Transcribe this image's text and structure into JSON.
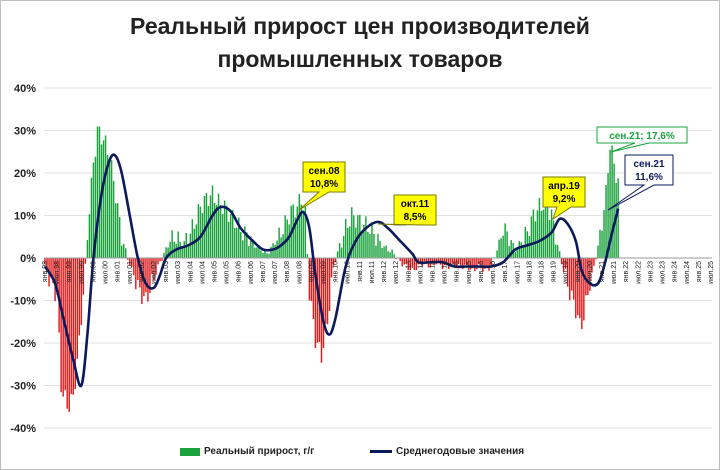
{
  "title_lines": [
    "Реальный прирост цен производителей",
    "промышленных товаров"
  ],
  "colors": {
    "positive": "#1aa33c",
    "negative": "#e01b1b",
    "line": "#0b1a5c",
    "callout_yellow": "#ffff00",
    "callout_green_text": "#1aa33c",
    "callout_blue_text": "#0b1a5c"
  },
  "legend": {
    "bars_label": "Реальный прирост, г/г",
    "line_label": "Среднегодовые значения"
  },
  "chart_data": {
    "type": "bar",
    "x_start": "1998-01",
    "x_end": "2025-07",
    "ylim": [
      -40,
      40
    ],
    "yticks": [
      "40%",
      "30%",
      "20%",
      "10%",
      "0%",
      "-10%",
      "-20%",
      "-30%",
      "-40%"
    ],
    "xtick_labels": [
      "янв.98",
      "июл.98",
      "янв.99",
      "июл.99",
      "янв.00",
      "июл.00",
      "янв.01",
      "июл.01",
      "янв.02",
      "июл.02",
      "янв.03",
      "июл.03",
      "янв.04",
      "июл.04",
      "янв.05",
      "июл.05",
      "янв.06",
      "июл.06",
      "янв.07",
      "июл.07",
      "янв.08",
      "июл.08",
      "янв.09",
      "июл.09",
      "янв.10",
      "июл.10",
      "янв.11",
      "июл.11",
      "янв.12",
      "июл.12",
      "янв.13",
      "июл.13",
      "янв.14",
      "июл.14",
      "янв.15",
      "июл.15",
      "янв.16",
      "июл.16",
      "янв.17",
      "июл.17",
      "янв.18",
      "июл.18",
      "янв.19",
      "июл.19",
      "янв.20",
      "июл.20",
      "янв.21",
      "июл.21",
      "янв.22",
      "июл.22",
      "янв.23",
      "июл.23",
      "янв.24",
      "июл.24",
      "янв.25",
      "июл.25"
    ],
    "series": [
      {
        "name": "Реальный прирост, г/г",
        "kind": "bar",
        "anchors": [
          [
            "1998-01",
            -2
          ],
          [
            "1998-04",
            -6
          ],
          [
            "1998-07",
            -9
          ],
          [
            "1998-09",
            -30
          ],
          [
            "1998-12",
            -35
          ],
          [
            "1999-03",
            -33
          ],
          [
            "1999-06",
            -20
          ],
          [
            "1999-09",
            -2
          ],
          [
            "1999-11",
            12
          ],
          [
            "2000-01",
            22
          ],
          [
            "2000-03",
            30
          ],
          [
            "2000-06",
            28
          ],
          [
            "2000-09",
            24
          ],
          [
            "2000-12",
            15
          ],
          [
            "2001-03",
            5
          ],
          [
            "2001-06",
            0
          ],
          [
            "2001-09",
            -4
          ],
          [
            "2001-12",
            -8
          ],
          [
            "2002-03",
            -10
          ],
          [
            "2002-06",
            -6
          ],
          [
            "2002-09",
            -2
          ],
          [
            "2002-12",
            1
          ],
          [
            "2003-03",
            4
          ],
          [
            "2003-06",
            5
          ],
          [
            "2003-09",
            3
          ],
          [
            "2003-12",
            5
          ],
          [
            "2004-03",
            8
          ],
          [
            "2004-06",
            12
          ],
          [
            "2004-09",
            14
          ],
          [
            "2004-12",
            15
          ],
          [
            "2005-03",
            13
          ],
          [
            "2005-06",
            12
          ],
          [
            "2005-09",
            10
          ],
          [
            "2005-12",
            8
          ],
          [
            "2006-03",
            6
          ],
          [
            "2006-06",
            5
          ],
          [
            "2006-09",
            3
          ],
          [
            "2006-12",
            2
          ],
          [
            "2007-03",
            1
          ],
          [
            "2007-06",
            3
          ],
          [
            "2007-09",
            5
          ],
          [
            "2007-12",
            8
          ],
          [
            "2008-03",
            11
          ],
          [
            "2008-06",
            12
          ],
          [
            "2008-08",
            14
          ],
          [
            "2008-10",
            10
          ],
          [
            "2008-12",
            -8
          ],
          [
            "2009-03",
            -19
          ],
          [
            "2009-06",
            -23
          ],
          [
            "2009-09",
            -15
          ],
          [
            "2009-12",
            -2
          ],
          [
            "2010-03",
            3
          ],
          [
            "2010-06",
            7
          ],
          [
            "2010-09",
            10
          ],
          [
            "2010-12",
            9
          ],
          [
            "2011-03",
            8
          ],
          [
            "2011-06",
            7
          ],
          [
            "2011-09",
            5
          ],
          [
            "2011-12",
            3
          ],
          [
            "2012-03",
            2
          ],
          [
            "2012-06",
            1
          ],
          [
            "2012-09",
            -1
          ],
          [
            "2012-12",
            -2
          ],
          [
            "2013-03",
            -3
          ],
          [
            "2013-06",
            -2
          ],
          [
            "2013-09",
            -1
          ],
          [
            "2013-12",
            -2
          ],
          [
            "2014-03",
            -1
          ],
          [
            "2014-06",
            -2
          ],
          [
            "2014-09",
            -2
          ],
          [
            "2014-12",
            -2
          ],
          [
            "2015-03",
            -2
          ],
          [
            "2015-06",
            -2
          ],
          [
            "2015-09",
            -3
          ],
          [
            "2015-12",
            -2
          ],
          [
            "2016-03",
            -3
          ],
          [
            "2016-06",
            -2
          ],
          [
            "2016-09",
            2
          ],
          [
            "2016-12",
            7
          ],
          [
            "2017-03",
            5
          ],
          [
            "2017-06",
            2
          ],
          [
            "2017-09",
            4
          ],
          [
            "2017-12",
            6
          ],
          [
            "2018-03",
            10
          ],
          [
            "2018-06",
            12
          ],
          [
            "2018-09",
            13
          ],
          [
            "2018-12",
            10
          ],
          [
            "2019-03",
            3
          ],
          [
            "2019-06",
            -3
          ],
          [
            "2019-09",
            -8
          ],
          [
            "2019-12",
            -12
          ],
          [
            "2020-02",
            -16
          ],
          [
            "2020-04",
            -14
          ],
          [
            "2020-06",
            -8
          ],
          [
            "2020-09",
            -2
          ],
          [
            "2020-12",
            5
          ],
          [
            "2021-03",
            15
          ],
          [
            "2021-05",
            27
          ],
          [
            "2021-07",
            22
          ],
          [
            "2021-09",
            17.6
          ]
        ]
      },
      {
        "name": "Среднегодовые значения",
        "kind": "line",
        "anchors": [
          [
            "1998-01",
            -2
          ],
          [
            "1998-06",
            -6
          ],
          [
            "1998-10",
            -14
          ],
          [
            "1999-03",
            -24
          ],
          [
            "1999-07",
            -30
          ],
          [
            "1999-10",
            -18
          ],
          [
            "2000-01",
            0
          ],
          [
            "2000-05",
            15
          ],
          [
            "2000-09",
            23
          ],
          [
            "2000-12",
            24
          ],
          [
            "2001-03",
            20
          ],
          [
            "2001-07",
            10
          ],
          [
            "2001-11",
            0
          ],
          [
            "2002-03",
            -6
          ],
          [
            "2002-07",
            -7
          ],
          [
            "2002-10",
            -4
          ],
          [
            "2003-01",
            0
          ],
          [
            "2003-06",
            2
          ],
          [
            "2003-12",
            3
          ],
          [
            "2004-06",
            5
          ],
          [
            "2004-12",
            10
          ],
          [
            "2005-04",
            12
          ],
          [
            "2005-09",
            11
          ],
          [
            "2006-02",
            7
          ],
          [
            "2006-08",
            4
          ],
          [
            "2007-01",
            2
          ],
          [
            "2007-06",
            2
          ],
          [
            "2007-10",
            3
          ],
          [
            "2008-02",
            5
          ],
          [
            "2008-06",
            9
          ],
          [
            "2008-09",
            10.8
          ],
          [
            "2008-12",
            7
          ],
          [
            "2009-03",
            -4
          ],
          [
            "2009-07",
            -15
          ],
          [
            "2009-10",
            -18
          ],
          [
            "2010-01",
            -14
          ],
          [
            "2010-06",
            -2
          ],
          [
            "2010-11",
            4
          ],
          [
            "2011-04",
            7
          ],
          [
            "2011-10",
            8.5
          ],
          [
            "2012-03",
            7
          ],
          [
            "2012-09",
            4
          ],
          [
            "2013-03",
            1
          ],
          [
            "2013-06",
            -1
          ],
          [
            "2013-12",
            -1
          ],
          [
            "2014-06",
            -1
          ],
          [
            "2014-12",
            -2
          ],
          [
            "2015-06",
            -2
          ],
          [
            "2015-12",
            -2
          ],
          [
            "2016-06",
            -2
          ],
          [
            "2016-12",
            -1
          ],
          [
            "2017-06",
            2
          ],
          [
            "2017-12",
            3
          ],
          [
            "2018-06",
            4
          ],
          [
            "2018-12",
            6
          ],
          [
            "2019-04",
            9.2
          ],
          [
            "2019-08",
            8
          ],
          [
            "2019-12",
            4
          ],
          [
            "2020-03",
            -3
          ],
          [
            "2020-07",
            -6
          ],
          [
            "2020-11",
            -6
          ],
          [
            "2021-02",
            -2
          ],
          [
            "2021-06",
            6
          ],
          [
            "2021-09",
            11.6
          ]
        ]
      }
    ],
    "annotations": [
      {
        "date": "2008-09",
        "value": 10.8,
        "lines": [
          "сен.08",
          "10,8%"
        ],
        "style": "yellow"
      },
      {
        "date": "2011-10",
        "value": 8.5,
        "lines": [
          "окт.11",
          "8,5%"
        ],
        "style": "yellow"
      },
      {
        "date": "2019-04",
        "value": 9.2,
        "lines": [
          "апр.19",
          "9,2%"
        ],
        "style": "yellow"
      },
      {
        "date": "2021-09",
        "value": 17.6,
        "lines": [
          "сен.21; 17,6%"
        ],
        "style": "green"
      },
      {
        "date": "2021-09",
        "value": 11.6,
        "lines": [
          "сен.21",
          "11,6%"
        ],
        "style": "blue"
      }
    ]
  }
}
